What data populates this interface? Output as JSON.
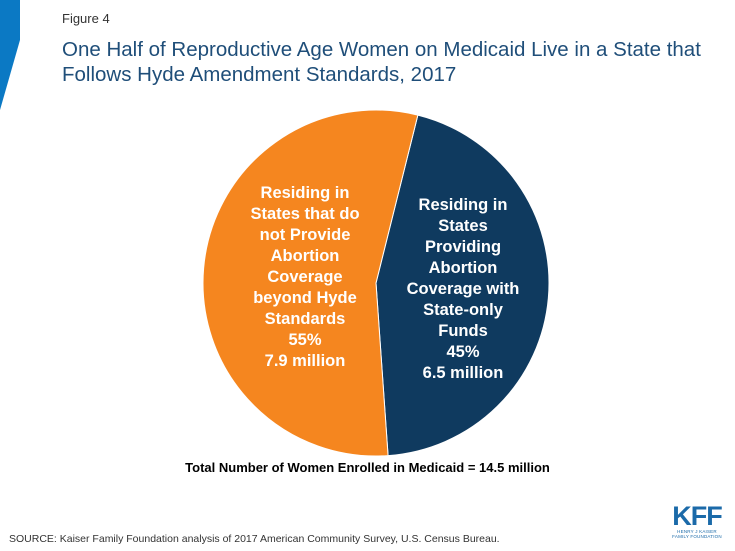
{
  "figure_label": "Figure 4",
  "title": "One Half of Reproductive Age Women on Medicaid Live in a State that Follows Hyde Amendment Standards, 2017",
  "total_note": "Total Number of Women Enrolled in Medicaid = 14.5 million",
  "source": "SOURCE:  Kaiser Family Foundation analysis of 2017 American Community Survey, U.S. Census Bureau.",
  "logo": {
    "text": "KFF",
    "subtext": "HENRY J KAISER FAMILY FOUNDATION"
  },
  "colors": {
    "accent": "#0b79c4",
    "title": "#1f4e79"
  },
  "chart_data": {
    "type": "pie",
    "title": "",
    "slices": [
      {
        "label_lines": [
          "Residing in",
          "States",
          "Providing",
          "Abortion",
          "Coverage with",
          "State-only",
          "Funds"
        ],
        "percent_label": "45%",
        "count_label": "6.5 million",
        "value": 45,
        "color": "#0f3a5f"
      },
      {
        "label_lines": [
          "Residing in",
          "States that do",
          "not Provide",
          "Abortion",
          "Coverage",
          "beyond Hyde",
          "Standards"
        ],
        "percent_label": "55%",
        "count_label": "7.9 million",
        "value": 55,
        "color": "#f5861f"
      }
    ]
  }
}
